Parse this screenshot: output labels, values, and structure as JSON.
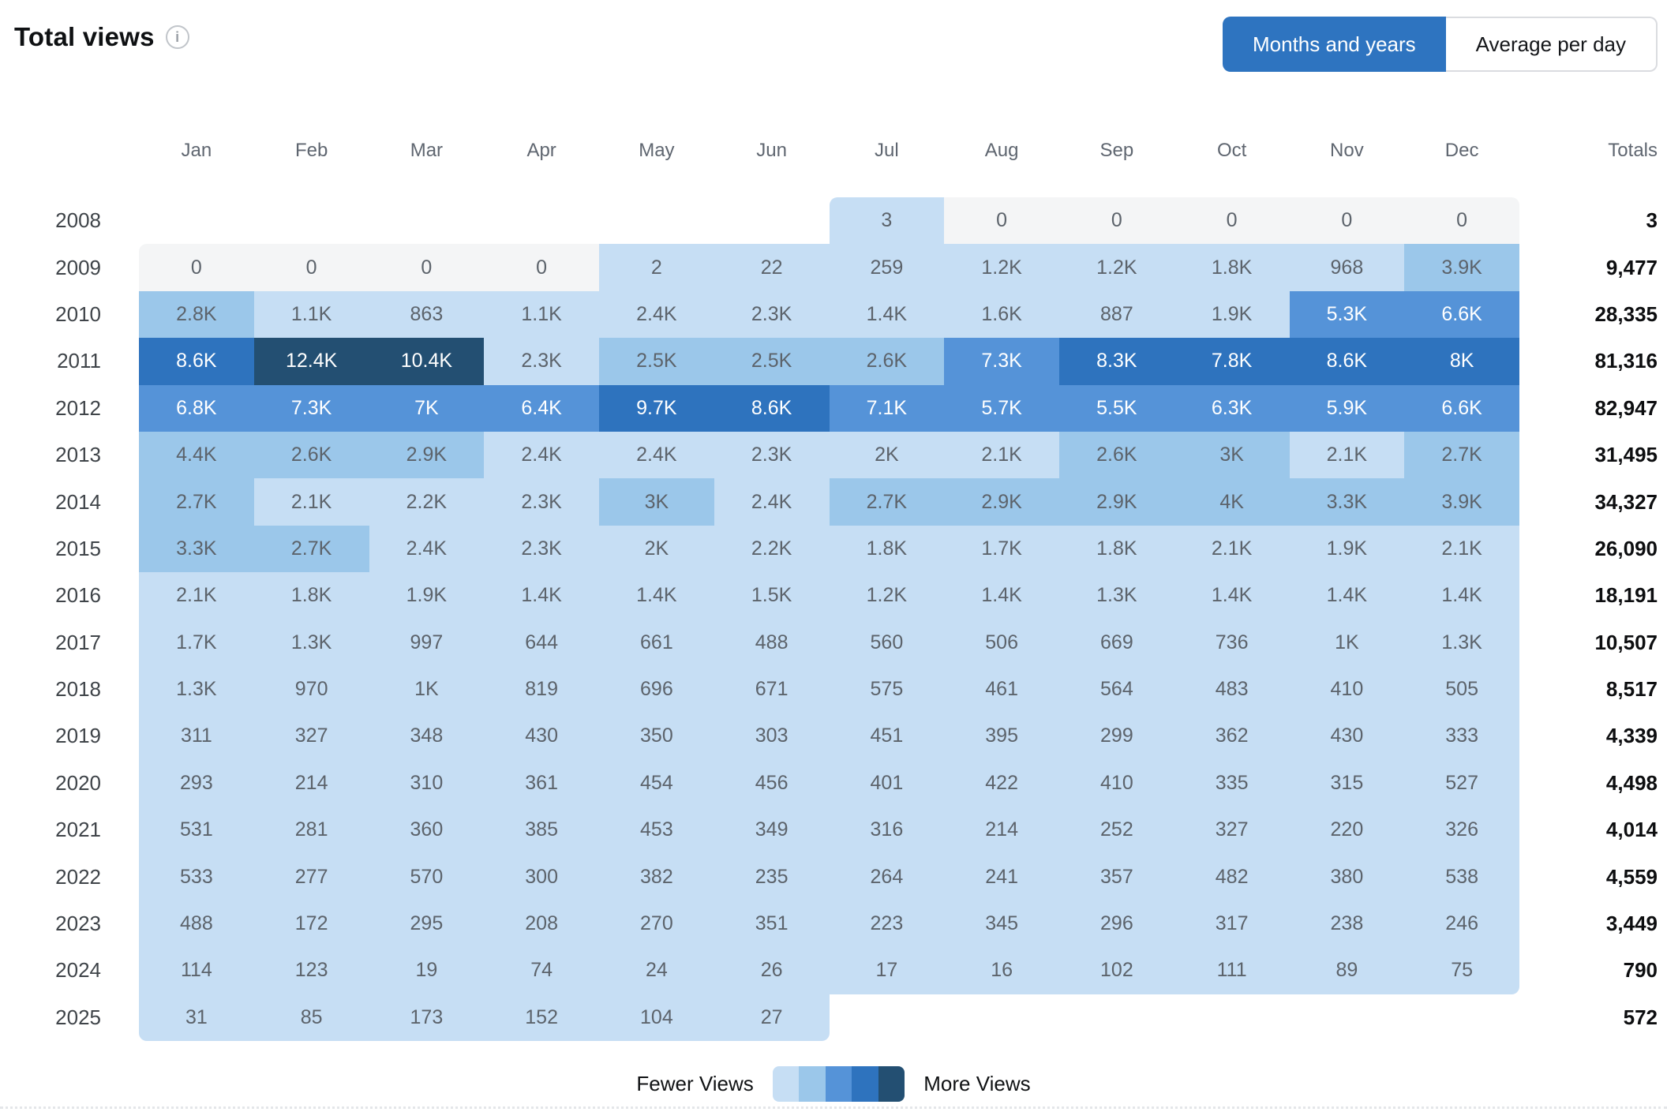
{
  "header": {
    "title": "Total views"
  },
  "toggle": {
    "options": [
      {
        "label": "Months and years",
        "active": true
      },
      {
        "label": "Average per day",
        "active": false
      }
    ]
  },
  "colors": {
    "accent_blue": "#2e74c0",
    "levels": [
      "#f4f5f6",
      "#c6def4",
      "#9bc7ea",
      "#5593d8",
      "#2e73be",
      "#234f72"
    ],
    "zero_gray": "#f4f5f6",
    "dark_cell_text": "#5c636b",
    "light_cell_text": "#ffffff"
  },
  "legend": {
    "fewer_label": "Fewer Views",
    "more_label": "More Views"
  },
  "chart_data": {
    "type": "heatmap",
    "title": "Total views",
    "x": [
      "Jan",
      "Feb",
      "Mar",
      "Apr",
      "May",
      "Jun",
      "Jul",
      "Aug",
      "Sep",
      "Oct",
      "Nov",
      "Dec"
    ],
    "totals_header": "Totals",
    "y": [
      "2008",
      "2009",
      "2010",
      "2011",
      "2012",
      "2013",
      "2014",
      "2015",
      "2016",
      "2017",
      "2018",
      "2019",
      "2020",
      "2021",
      "2022",
      "2023",
      "2024",
      "2025"
    ],
    "values": [
      [
        null,
        null,
        null,
        null,
        null,
        null,
        "3",
        "0",
        "0",
        "0",
        "0",
        "0"
      ],
      [
        "0",
        "0",
        "0",
        "0",
        "2",
        "22",
        "259",
        "1.2K",
        "1.2K",
        "1.8K",
        "968",
        "3.9K"
      ],
      [
        "2.8K",
        "1.1K",
        "863",
        "1.1K",
        "2.4K",
        "2.3K",
        "1.4K",
        "1.6K",
        "887",
        "1.9K",
        "5.3K",
        "6.6K"
      ],
      [
        "8.6K",
        "12.4K",
        "10.4K",
        "2.3K",
        "2.5K",
        "2.5K",
        "2.6K",
        "7.3K",
        "8.3K",
        "7.8K",
        "8.6K",
        "8K"
      ],
      [
        "6.8K",
        "7.3K",
        "7K",
        "6.4K",
        "9.7K",
        "8.6K",
        "7.1K",
        "5.7K",
        "5.5K",
        "6.3K",
        "5.9K",
        "6.6K"
      ],
      [
        "4.4K",
        "2.6K",
        "2.9K",
        "2.4K",
        "2.4K",
        "2.3K",
        "2K",
        "2.1K",
        "2.6K",
        "3K",
        "2.1K",
        "2.7K"
      ],
      [
        "2.7K",
        "2.1K",
        "2.2K",
        "2.3K",
        "3K",
        "2.4K",
        "2.7K",
        "2.9K",
        "2.9K",
        "4K",
        "3.3K",
        "3.9K"
      ],
      [
        "3.3K",
        "2.7K",
        "2.4K",
        "2.3K",
        "2K",
        "2.2K",
        "1.8K",
        "1.7K",
        "1.8K",
        "2.1K",
        "1.9K",
        "2.1K"
      ],
      [
        "2.1K",
        "1.8K",
        "1.9K",
        "1.4K",
        "1.4K",
        "1.5K",
        "1.2K",
        "1.4K",
        "1.3K",
        "1.4K",
        "1.4K",
        "1.4K"
      ],
      [
        "1.7K",
        "1.3K",
        "997",
        "644",
        "661",
        "488",
        "560",
        "506",
        "669",
        "736",
        "1K",
        "1.3K"
      ],
      [
        "1.3K",
        "970",
        "1K",
        "819",
        "696",
        "671",
        "575",
        "461",
        "564",
        "483",
        "410",
        "505"
      ],
      [
        "311",
        "327",
        "348",
        "430",
        "350",
        "303",
        "451",
        "395",
        "299",
        "362",
        "430",
        "333"
      ],
      [
        "293",
        "214",
        "310",
        "361",
        "454",
        "456",
        "401",
        "422",
        "410",
        "335",
        "315",
        "527"
      ],
      [
        "531",
        "281",
        "360",
        "385",
        "453",
        "349",
        "316",
        "214",
        "252",
        "327",
        "220",
        "326"
      ],
      [
        "533",
        "277",
        "570",
        "300",
        "382",
        "235",
        "264",
        "241",
        "357",
        "482",
        "380",
        "538"
      ],
      [
        "488",
        "172",
        "295",
        "208",
        "270",
        "351",
        "223",
        "345",
        "296",
        "317",
        "238",
        "246"
      ],
      [
        "114",
        "123",
        "19",
        "74",
        "24",
        "26",
        "17",
        "16",
        "102",
        "111",
        "89",
        "75"
      ],
      [
        "31",
        "85",
        "173",
        "152",
        "104",
        "27",
        null,
        null,
        null,
        null,
        null,
        null
      ]
    ],
    "levels": [
      [
        -1,
        -1,
        -1,
        -1,
        -1,
        -1,
        1,
        0,
        0,
        0,
        0,
        0
      ],
      [
        0,
        0,
        0,
        0,
        1,
        1,
        1,
        1,
        1,
        1,
        1,
        2
      ],
      [
        2,
        1,
        1,
        1,
        1,
        1,
        1,
        1,
        1,
        1,
        3,
        3
      ],
      [
        4,
        5,
        5,
        1,
        2,
        2,
        2,
        3,
        4,
        4,
        4,
        4
      ],
      [
        3,
        3,
        3,
        3,
        4,
        4,
        3,
        3,
        3,
        3,
        3,
        3
      ],
      [
        2,
        2,
        2,
        1,
        1,
        1,
        1,
        1,
        2,
        2,
        1,
        2
      ],
      [
        2,
        1,
        1,
        1,
        2,
        1,
        2,
        2,
        2,
        2,
        2,
        2
      ],
      [
        2,
        2,
        1,
        1,
        1,
        1,
        1,
        1,
        1,
        1,
        1,
        1
      ],
      [
        1,
        1,
        1,
        1,
        1,
        1,
        1,
        1,
        1,
        1,
        1,
        1
      ],
      [
        1,
        1,
        1,
        1,
        1,
        1,
        1,
        1,
        1,
        1,
        1,
        1
      ],
      [
        1,
        1,
        1,
        1,
        1,
        1,
        1,
        1,
        1,
        1,
        1,
        1
      ],
      [
        1,
        1,
        1,
        1,
        1,
        1,
        1,
        1,
        1,
        1,
        1,
        1
      ],
      [
        1,
        1,
        1,
        1,
        1,
        1,
        1,
        1,
        1,
        1,
        1,
        1
      ],
      [
        1,
        1,
        1,
        1,
        1,
        1,
        1,
        1,
        1,
        1,
        1,
        1
      ],
      [
        1,
        1,
        1,
        1,
        1,
        1,
        1,
        1,
        1,
        1,
        1,
        1
      ],
      [
        1,
        1,
        1,
        1,
        1,
        1,
        1,
        1,
        1,
        1,
        1,
        1
      ],
      [
        1,
        1,
        1,
        1,
        1,
        1,
        1,
        1,
        1,
        1,
        1,
        1
      ],
      [
        1,
        1,
        1,
        1,
        1,
        1,
        -1,
        -1,
        -1,
        -1,
        -1,
        -1
      ]
    ],
    "totals": [
      "3",
      "9,477",
      "28,335",
      "81,316",
      "82,947",
      "31,495",
      "34,327",
      "26,090",
      "18,191",
      "10,507",
      "8,517",
      "4,339",
      "4,498",
      "4,014",
      "4,559",
      "3,449",
      "790",
      "572"
    ],
    "legend": {
      "fewer": "Fewer Views",
      "more": "More Views"
    }
  }
}
